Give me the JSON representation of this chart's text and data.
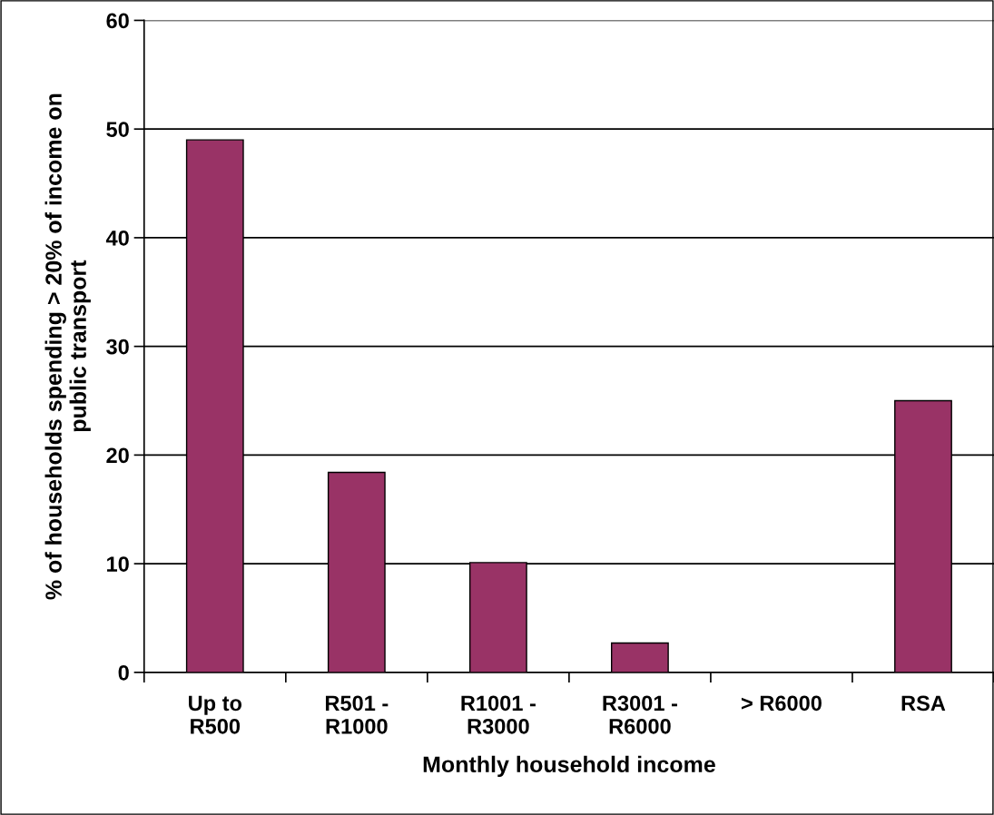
{
  "chart_data": {
    "type": "bar",
    "categories": [
      "Up to\nR500",
      "R501 -\nR1000",
      "R1001 -\nR3000",
      "R3001 -\nR6000",
      "> R6000",
      "RSA"
    ],
    "values": [
      49,
      18.4,
      10.1,
      2.7,
      0,
      25
    ],
    "color": "#993366",
    "xlabel": "Monthly household income",
    "ylabel": "% of households spending > 20% of income on\npublic transport",
    "ylim": [
      0,
      60
    ],
    "yticks": [
      0,
      10,
      20,
      30,
      40,
      50,
      60
    ],
    "grid": "y"
  }
}
